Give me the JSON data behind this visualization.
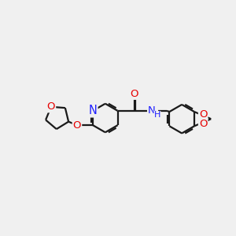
{
  "background_color": "#f0f0f0",
  "bond_color": "#1a1a1a",
  "bond_width": 1.6,
  "atom_colors": {
    "O": "#e60000",
    "N": "#2020ff",
    "NH": "#2020ff",
    "C": "#1a1a1a"
  },
  "font_size": 9.5,
  "fig_width": 3.0,
  "fig_height": 3.0,
  "dpi": 100
}
